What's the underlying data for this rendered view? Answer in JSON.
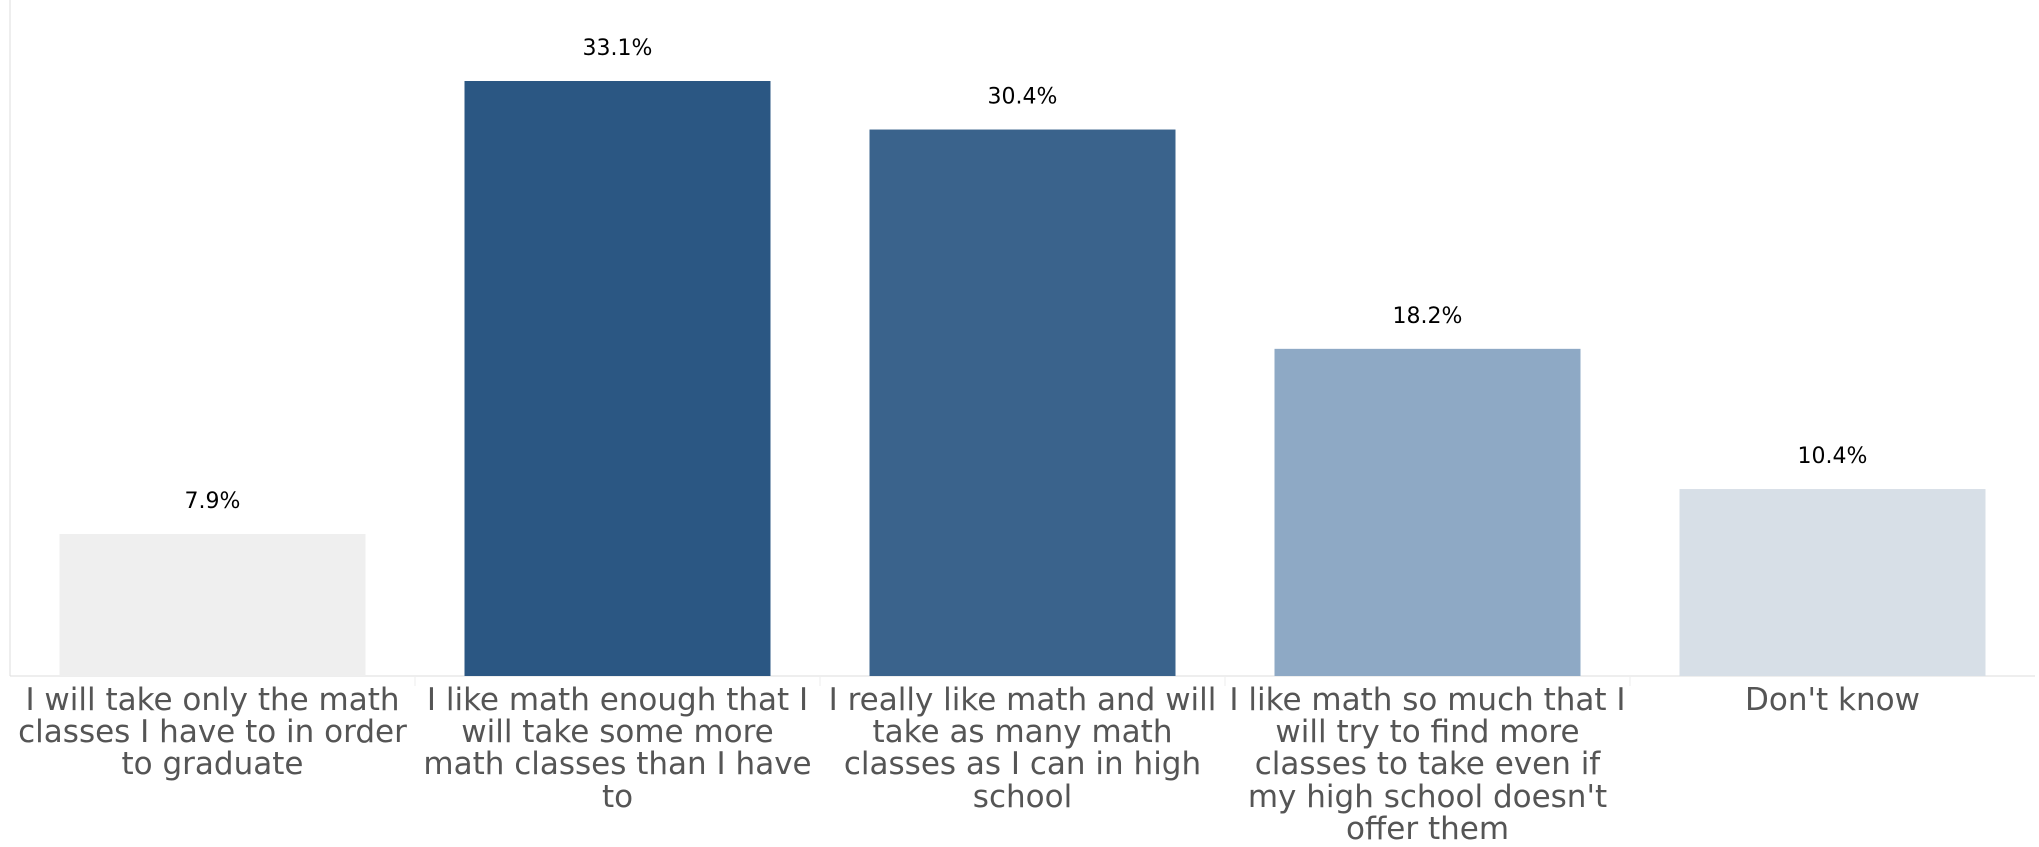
{
  "chart_data": {
    "type": "bar",
    "categories": [
      "I will take only the math classes I have to in order to graduate",
      "I like math enough that I will take some more math classes than I have to",
      "I really like math and will take as many math classes as I can in high school",
      "I like math so much that I will try to find more classes to take even if my high school doesn't offer them",
      "Don't know"
    ],
    "values": [
      7.9,
      33.1,
      30.4,
      18.2,
      10.4
    ],
    "data_labels": [
      "7.9%",
      "33.1%",
      "30.4%",
      "18.2%",
      "10.4%"
    ],
    "colors": [
      "#efefef",
      "#2b5783",
      "#3a638c",
      "#8ea9c5",
      "#d7dfe7"
    ],
    "ylim": [
      0,
      33.1
    ],
    "grid": false,
    "legend": "none",
    "title": "",
    "xlabel": "",
    "ylabel": ""
  }
}
